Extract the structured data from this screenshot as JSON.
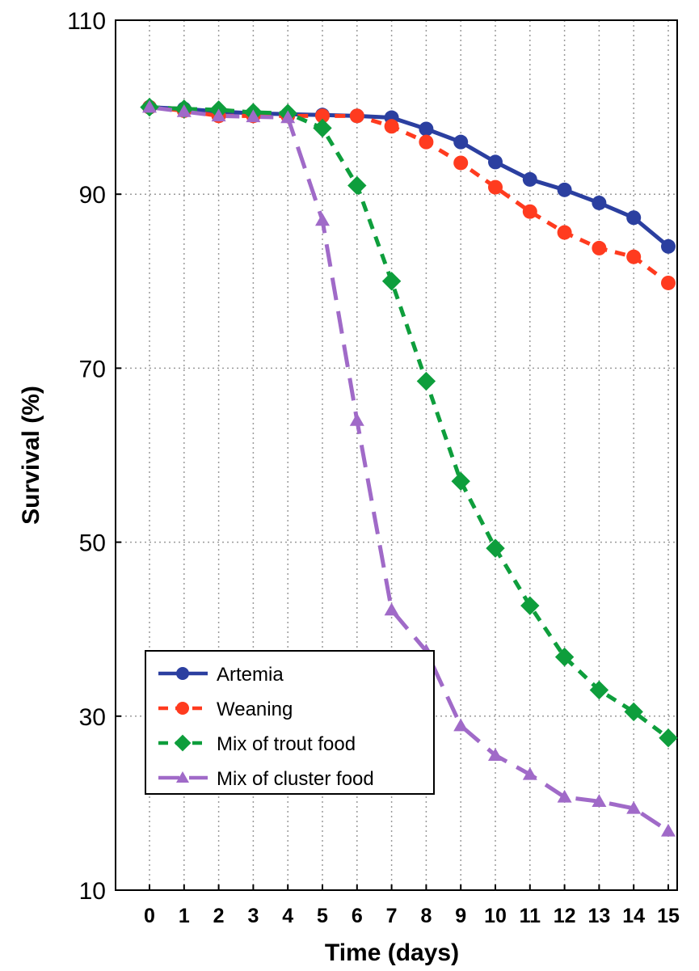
{
  "chart_data": {
    "type": "line",
    "xlabel": "Time (days)",
    "ylabel": "Survival (%)",
    "xlim": [
      0,
      15
    ],
    "ylim": [
      10,
      110
    ],
    "x": [
      0,
      1,
      2,
      3,
      4,
      5,
      6,
      7,
      8,
      9,
      10,
      11,
      12,
      13,
      14,
      15
    ],
    "x_ticks": [
      "0",
      "1",
      "2",
      "3",
      "4",
      "5",
      "6",
      "7",
      "8",
      "9",
      "10",
      "11",
      "12",
      "13",
      "14",
      "15"
    ],
    "y_ticks": [
      "10",
      "30",
      "50",
      "70",
      "90",
      "110"
    ],
    "grid": true,
    "legend_position": "lower-left",
    "series": [
      {
        "name": "Artemia",
        "color": "#2b3fa0",
        "line": "solid",
        "marker": "circle",
        "values": [
          100,
          99.8,
          99.5,
          99.3,
          99.2,
          99.1,
          99,
          98.8,
          97.5,
          96,
          93.7,
          91.7,
          90.5,
          89,
          87.3,
          84
        ]
      },
      {
        "name": "Weaning",
        "color": "#ff3b1f",
        "line": "dashed",
        "marker": "circle",
        "values": [
          100,
          99.6,
          99,
          99,
          99,
          99,
          99,
          97.8,
          96,
          93.6,
          90.8,
          88,
          85.6,
          83.8,
          82.8,
          79.8
        ]
      },
      {
        "name": "Mix of trout food",
        "color": "#0e9e3c",
        "line": "dashed",
        "marker": "diamond",
        "values": [
          100,
          99.8,
          99.7,
          99.4,
          99.3,
          97.6,
          91,
          80,
          68.5,
          57,
          49.3,
          42.7,
          36.8,
          33,
          30.5,
          27.5
        ]
      },
      {
        "name": "Mix of cluster food",
        "color": "#a06ac8",
        "line": "dash-gap",
        "marker": "triangle",
        "values": [
          100,
          99.5,
          99,
          98.9,
          98.8,
          87,
          64,
          42.2,
          37.5,
          28.9,
          25.5,
          23.3,
          20.7,
          20.2,
          19.4,
          16.8
        ]
      }
    ]
  }
}
